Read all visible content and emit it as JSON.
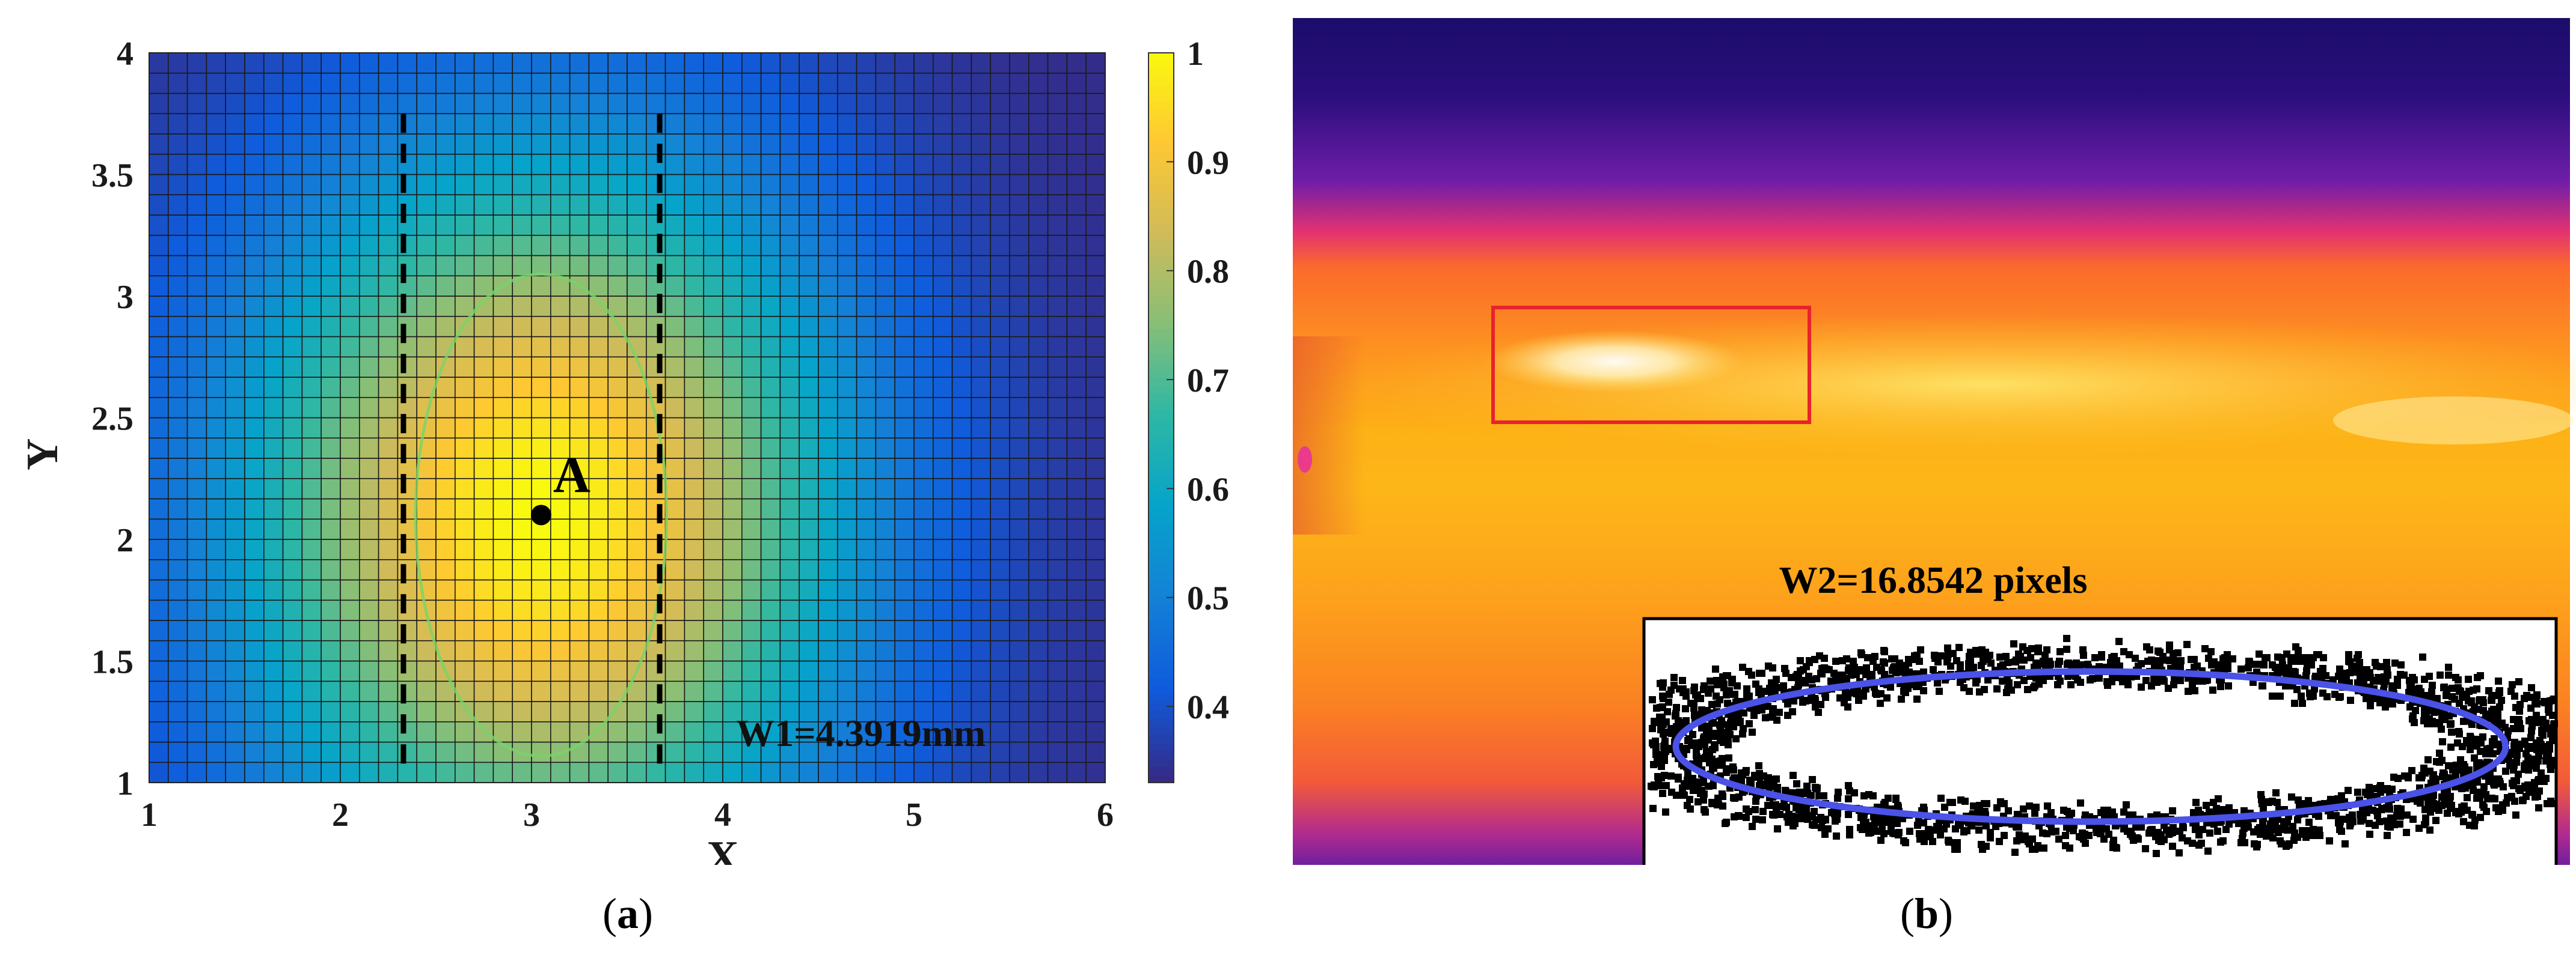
{
  "figure": {
    "panel_a": {
      "caption_open": "(",
      "caption_letter": "a",
      "caption_close": ")",
      "point_label": "A",
      "width_label": "W1=4.3919mm",
      "xlabel": "X",
      "ylabel": "Y"
    },
    "panel_b": {
      "caption_open": "(",
      "caption_letter": "b",
      "caption_close": ")",
      "width_label": "W2=16.8542 pixels"
    }
  },
  "chart_data": [
    {
      "type": "heatmap",
      "title": "",
      "xlabel": "X",
      "ylabel": "Y",
      "xlim": [
        1,
        6
      ],
      "ylim": [
        1,
        4
      ],
      "xticks": [
        "1",
        "2",
        "3",
        "4",
        "5",
        "6"
      ],
      "yticks": [
        "1",
        "1.5",
        "2",
        "2.5",
        "3",
        "3.5",
        "4"
      ],
      "colorbar": {
        "range": [
          0.33,
          1.0
        ],
        "ticks": [
          "0.4",
          "0.5",
          "0.6",
          "0.7",
          "0.8",
          "0.9",
          "1"
        ],
        "colormap": "parula"
      },
      "peak": {
        "x": 3.05,
        "y": 2.1,
        "value": 1.0,
        "label": "A"
      },
      "dashed_lines_x": [
        2.33,
        3.67
      ],
      "contour_level": 0.75,
      "grid": true,
      "annotation": "W1=4.3919mm"
    }
  ],
  "colors": {
    "parula": [
      "#352a87",
      "#0f5cdd",
      "#1481d6",
      "#06a4ca",
      "#2eb7a4",
      "#87bf77",
      "#d1bb59",
      "#fec832",
      "#f9fb0e"
    ],
    "thermal_box": "#e8222b",
    "ellipse": "#4a52e8",
    "contour": "#79d36a"
  }
}
